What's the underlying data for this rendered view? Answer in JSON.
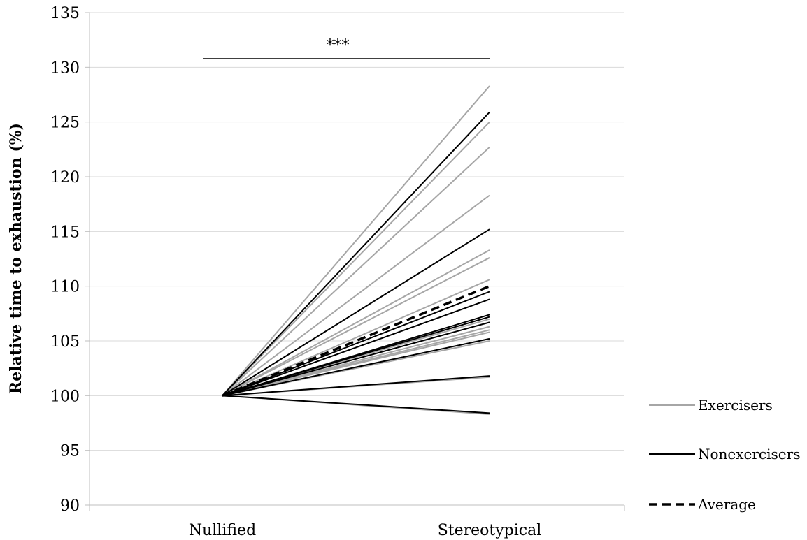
{
  "chart_data": {
    "type": "line",
    "title": "",
    "xlabel": "",
    "ylabel": "Relative time to exhaustion (%)",
    "categories": [
      "Nullified",
      "Stereotypical"
    ],
    "ylim": [
      90,
      135
    ],
    "yticks": [
      90,
      95,
      100,
      105,
      110,
      115,
      120,
      125,
      130,
      135
    ],
    "ytick_labels": [
      "90",
      "95",
      "100",
      "105",
      "110",
      "115",
      "120",
      "125",
      "130",
      "135"
    ],
    "grid": true,
    "legend_position": "right",
    "legend": [
      {
        "label": "Exercisers",
        "color": "#a6a6a6",
        "style": "solid"
      },
      {
        "label": "Nonexercisers",
        "color": "#000000",
        "style": "solid"
      },
      {
        "label": "Average",
        "color": "#000000",
        "style": "dashed"
      }
    ],
    "significance": {
      "label": "***",
      "from": "Nullified",
      "to": "Stereotypical",
      "y": 130.8
    },
    "series": [
      {
        "group": "Exercisers",
        "values": [
          100,
          128.3
        ]
      },
      {
        "group": "Exercisers",
        "values": [
          100,
          125.0
        ]
      },
      {
        "group": "Exercisers",
        "values": [
          100,
          122.7
        ]
      },
      {
        "group": "Exercisers",
        "values": [
          100,
          118.3
        ]
      },
      {
        "group": "Exercisers",
        "values": [
          100,
          113.3
        ]
      },
      {
        "group": "Exercisers",
        "values": [
          100,
          112.6
        ]
      },
      {
        "group": "Exercisers",
        "values": [
          100,
          110.6
        ]
      },
      {
        "group": "Exercisers",
        "values": [
          100,
          107.0
        ]
      },
      {
        "group": "Exercisers",
        "values": [
          100,
          106.3
        ]
      },
      {
        "group": "Exercisers",
        "values": [
          100,
          106.0
        ]
      },
      {
        "group": "Exercisers",
        "values": [
          100,
          105.8
        ]
      },
      {
        "group": "Exercisers",
        "values": [
          100,
          105.0
        ]
      },
      {
        "group": "Exercisers",
        "values": [
          100,
          101.7
        ]
      },
      {
        "group": "Exercisers",
        "values": [
          100,
          98.3
        ]
      },
      {
        "group": "Nonexercisers",
        "values": [
          100,
          125.9
        ]
      },
      {
        "group": "Nonexercisers",
        "values": [
          100,
          115.2
        ]
      },
      {
        "group": "Nonexercisers",
        "values": [
          100,
          109.5
        ]
      },
      {
        "group": "Nonexercisers",
        "values": [
          100,
          108.8
        ]
      },
      {
        "group": "Nonexercisers",
        "values": [
          100,
          107.4
        ]
      },
      {
        "group": "Nonexercisers",
        "values": [
          100,
          107.2
        ]
      },
      {
        "group": "Nonexercisers",
        "values": [
          100,
          106.7
        ]
      },
      {
        "group": "Nonexercisers",
        "values": [
          100,
          105.2
        ]
      },
      {
        "group": "Nonexercisers",
        "values": [
          100,
          101.8
        ]
      },
      {
        "group": "Nonexercisers",
        "values": [
          100,
          98.4
        ]
      },
      {
        "group": "Average",
        "values": [
          100,
          110.0
        ]
      }
    ]
  }
}
